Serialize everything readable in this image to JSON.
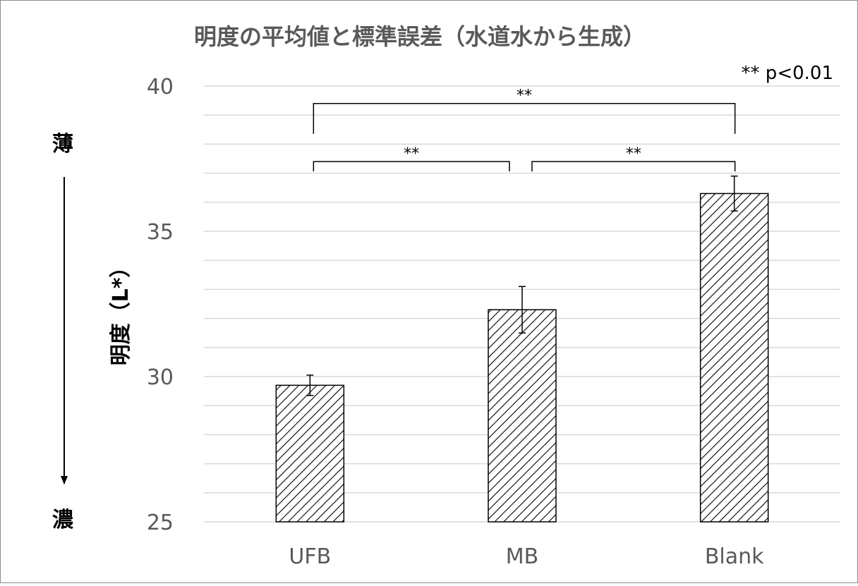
{
  "chart_data": {
    "type": "bar",
    "title": "明度の平均値と標準誤差（水道水から生成）",
    "ylabel": "明度（L*）",
    "xlabel": "",
    "categories": [
      "UFB",
      "MB",
      "Blank"
    ],
    "values": [
      29.7,
      32.3,
      36.3
    ],
    "errors": [
      0.35,
      0.8,
      0.6
    ],
    "ylim": [
      25,
      40
    ],
    "yticks": [
      25,
      30,
      35,
      40
    ],
    "ytick_labels": [
      "25",
      "30",
      "35",
      "40"
    ],
    "minor_gridline_step": 1,
    "grid": true,
    "bar_fill": "diagonal-hatch",
    "significance_note": "** p<0.01",
    "significance_brackets": [
      {
        "from": 0,
        "to": 1,
        "label": "**",
        "y": 37.4
      },
      {
        "from": 1,
        "to": 2,
        "label": "**",
        "y": 37.4
      },
      {
        "from": 0,
        "to": 2,
        "label": "**",
        "y": 39.4
      }
    ],
    "side_arrow": {
      "top_label": "薄",
      "bottom_label": "濃"
    },
    "colors": {
      "text": "#595959",
      "title": "#595959",
      "bar_outline": "#000000",
      "hatch": "#000000",
      "grid": "#d9d9d9",
      "dark_text": "#000000"
    }
  }
}
